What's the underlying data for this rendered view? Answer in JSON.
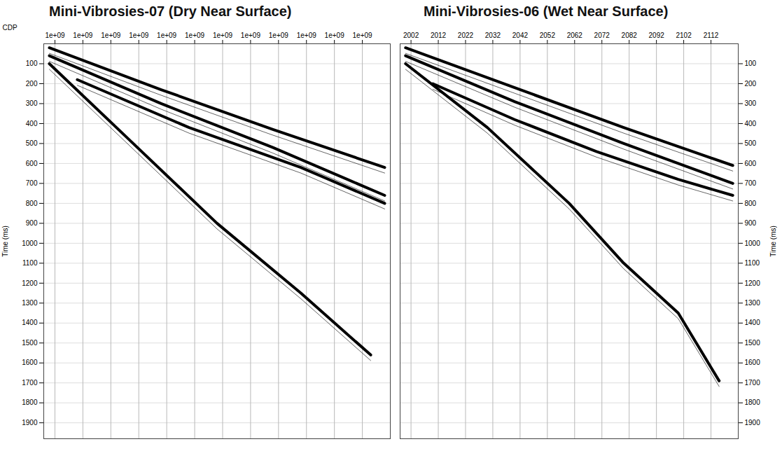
{
  "chart_data": [
    {
      "type": "line",
      "title": "Mini-Vibrosies-07 (Dry Near Surface)",
      "xlabel": "CDP",
      "ylabel": "Time (ms)",
      "xlim": [
        1998,
        2122
      ],
      "xticks": [
        {
          "value": 2002,
          "label": "1e+09"
        },
        {
          "value": 2012,
          "label": "1e+09"
        },
        {
          "value": 2022,
          "label": "1e+09"
        },
        {
          "value": 2032,
          "label": "1e+09"
        },
        {
          "value": 2042,
          "label": "1e+09"
        },
        {
          "value": 2052,
          "label": "1e+09"
        },
        {
          "value": 2062,
          "label": "1e+09"
        },
        {
          "value": 2072,
          "label": "1e+09"
        },
        {
          "value": 2082,
          "label": "1e+09"
        },
        {
          "value": 2092,
          "label": "1e+09"
        },
        {
          "value": 2102,
          "label": "1e+09"
        },
        {
          "value": 2112,
          "label": "1e+09"
        }
      ],
      "ylim": [
        0,
        1980
      ],
      "yticks": [
        100,
        200,
        300,
        400,
        500,
        600,
        700,
        800,
        900,
        1000,
        1100,
        1200,
        1300,
        1400,
        1500,
        1600,
        1700,
        1800,
        1900
      ],
      "grid": true,
      "color": "#000000",
      "series": [
        {
          "x": [
            2000,
            2040,
            2080,
            2120
          ],
          "values": [
            20,
            230,
            430,
            620
          ]
        },
        {
          "x": [
            2000,
            2040,
            2080,
            2120
          ],
          "values": [
            60,
            300,
            520,
            760
          ]
        },
        {
          "x": [
            2010,
            2050,
            2090,
            2120
          ],
          "values": [
            180,
            420,
            620,
            800
          ]
        },
        {
          "x": [
            2000,
            2030,
            2060,
            2090,
            2115
          ],
          "values": [
            100,
            500,
            900,
            1250,
            1560
          ]
        }
      ]
    },
    {
      "type": "line",
      "title": "Mini-Vibrosies-06 (Wet Near Surface)",
      "ylabel": "Time (ms)",
      "xlim": [
        1998,
        2122
      ],
      "xticks": [
        2002,
        2012,
        2022,
        2032,
        2042,
        2052,
        2062,
        2072,
        2082,
        2092,
        2102,
        2112
      ],
      "ylim": [
        0,
        1980
      ],
      "yticks": [
        100,
        200,
        300,
        400,
        500,
        600,
        700,
        800,
        900,
        1000,
        1100,
        1200,
        1300,
        1400,
        1500,
        1600,
        1700,
        1800,
        1900
      ],
      "grid": true,
      "color": "#000000",
      "series": [
        {
          "x": [
            2000,
            2040,
            2080,
            2120
          ],
          "values": [
            20,
            220,
            420,
            610
          ]
        },
        {
          "x": [
            2000,
            2040,
            2080,
            2120
          ],
          "values": [
            60,
            290,
            500,
            700
          ]
        },
        {
          "x": [
            2010,
            2040,
            2070,
            2100,
            2120
          ],
          "values": [
            200,
            380,
            540,
            680,
            760
          ]
        },
        {
          "x": [
            2000,
            2030,
            2060,
            2080,
            2100,
            2115
          ],
          "values": [
            100,
            420,
            800,
            1100,
            1350,
            1690
          ]
        }
      ]
    }
  ]
}
